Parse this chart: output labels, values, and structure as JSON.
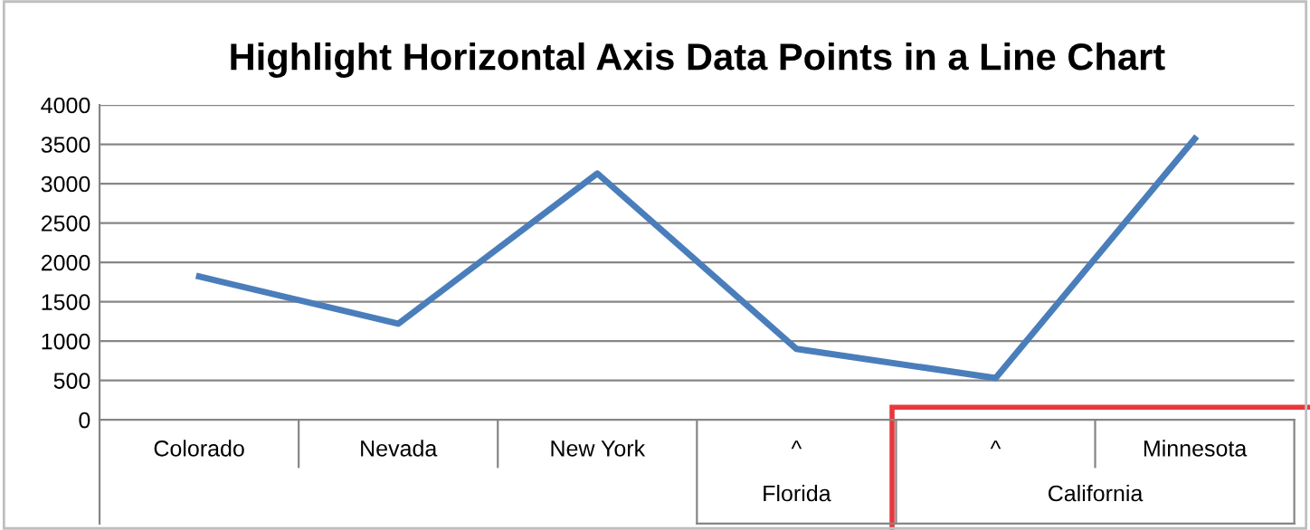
{
  "chart_data": {
    "type": "line",
    "title": "Highlight Horizontal Axis Data Points in a Line Chart",
    "categories": [
      "Colorado",
      "Nevada",
      "New York",
      "^",
      "^",
      "Minnesota"
    ],
    "series": [
      {
        "color": "#4a7ebb",
        "values": [
          1820,
          1220,
          3130,
          900,
          530,
          3570
        ]
      }
    ],
    "annotations": [
      "Florida",
      "California"
    ],
    "ylim": [
      0,
      4000
    ],
    "yticks": [
      0,
      500,
      1000,
      1500,
      2000,
      2500,
      3000,
      3500,
      4000
    ],
    "grid": "y",
    "legend": false,
    "marker": "none",
    "line_style": "solid"
  }
}
